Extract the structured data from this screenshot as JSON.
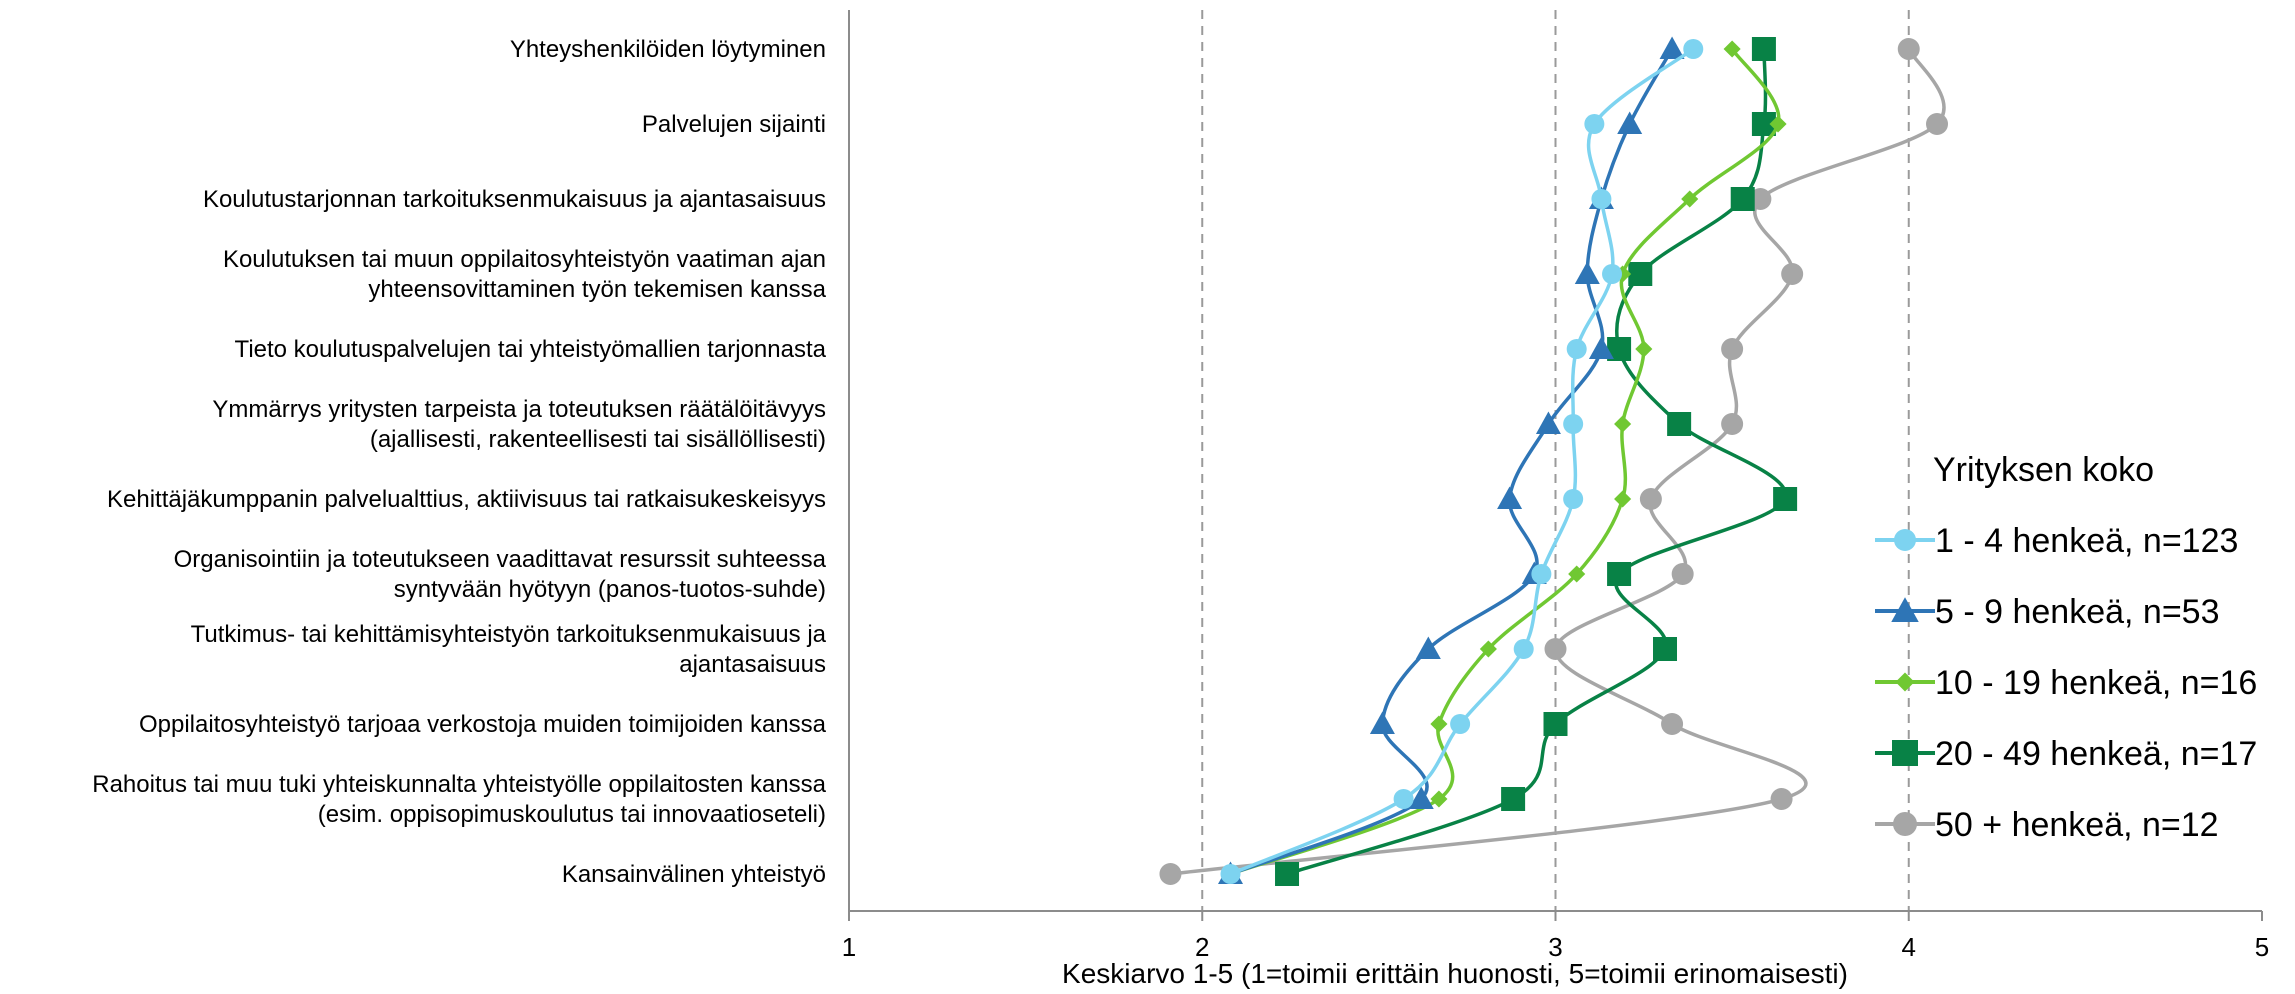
{
  "chart_data": {
    "type": "line",
    "orientation": "horizontal-category",
    "categories": [
      [
        "Yhteyshenkilöiden löytyminen"
      ],
      [
        "Palvelujen sijainti"
      ],
      [
        "Koulutustarjonnan tarkoituksenmukaisuus ja ajantasaisuus"
      ],
      [
        "Koulutuksen tai muun oppilaitosyhteistyön vaatiman ajan",
        "yhteensovittaminen työn tekemisen kanssa"
      ],
      [
        "Tieto koulutuspalvelujen tai yhteistyömallien tarjonnasta"
      ],
      [
        "Ymmärrys yritysten tarpeista ja toteutuksen räätälöitävyys",
        "(ajallisesti, rakenteellisesti tai sisällöllisesti)"
      ],
      [
        "Kehittäjäkumppanin palvelualttius, aktiivisuus tai ratkaisukeskeisyys"
      ],
      [
        "Organisointiin ja toteutukseen vaadittavat resurssit suhteessa",
        "syntyvään hyötyyn (panos-tuotos-suhde)"
      ],
      [
        "Tutkimus- tai kehittämisyhteistyön tarkoituksenmukaisuus ja",
        "ajantasaisuus"
      ],
      [
        "Oppilaitosyhteistyö tarjoaa verkostoja muiden toimijoiden kanssa"
      ],
      [
        "Rahoitus tai muu tuki yhteiskunnalta yhteistyölle oppilaitosten kanssa",
        "(esim. oppisopimuskoulutus tai innovaatioseteli)"
      ],
      [
        "Kansainvälinen yhteistyö"
      ]
    ],
    "xlabel": "Keskiarvo 1-5 (1=toimii erittäin huonosti, 5=toimii erinomaisesti)",
    "xlim": [
      1,
      5
    ],
    "xticks": [
      "1",
      "2",
      "3",
      "4",
      "5"
    ],
    "gridlines": "dashed vertical at 2, 3, 4",
    "legend": {
      "title": "Yrityksen koko",
      "position": "right"
    },
    "series": [
      {
        "name": "1 - 4 henkeä, n=123",
        "color": "#7dd3f0",
        "marker": "circle",
        "values": [
          3.39,
          3.11,
          3.13,
          3.16,
          3.06,
          3.05,
          3.05,
          2.96,
          2.91,
          2.73,
          2.57,
          2.08
        ]
      },
      {
        "name": "5 - 9 henkeä, n=53",
        "color": "#2e75b6",
        "marker": "triangle",
        "values": [
          3.33,
          3.21,
          3.13,
          3.09,
          3.13,
          2.98,
          2.87,
          2.94,
          2.64,
          2.51,
          2.62,
          2.08
        ]
      },
      {
        "name": "10 - 19 henkeä, n=16",
        "color": "#70c832",
        "marker": "diamond",
        "values": [
          3.5,
          3.63,
          3.38,
          3.19,
          3.25,
          3.19,
          3.19,
          3.06,
          2.81,
          2.67,
          2.67,
          2.08
        ]
      },
      {
        "name": "20 - 49 henkeä, n=17",
        "color": "#088246",
        "marker": "square",
        "values": [
          3.59,
          3.59,
          3.53,
          3.24,
          3.18,
          3.35,
          3.65,
          3.18,
          3.31,
          3.0,
          2.88,
          2.24
        ]
      },
      {
        "name": "50 + henkeä, n=12",
        "color": "#a6a6a6",
        "marker": "circle",
        "values": [
          4.0,
          4.08,
          3.58,
          3.67,
          3.5,
          3.5,
          3.27,
          3.36,
          3.0,
          3.33,
          3.64,
          1.91
        ]
      }
    ]
  }
}
